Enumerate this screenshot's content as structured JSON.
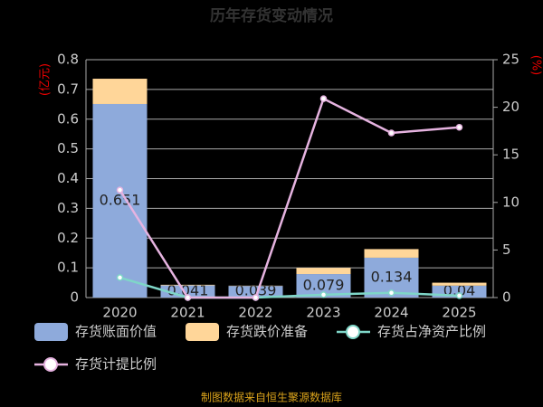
{
  "chart_data": {
    "type": "bar",
    "title": "历年存货变动情况",
    "y_label": "(亿元)",
    "y2_label": "(%)",
    "footer": "制图数据来自恒生聚源数据库",
    "categories": [
      "2020",
      "2021",
      "2022",
      "2023",
      "2024",
      "2025"
    ],
    "ylim": [
      0,
      0.8
    ],
    "yticks": [
      0,
      0.1,
      0.2,
      0.3,
      0.4,
      0.5,
      0.6,
      0.7,
      0.8
    ],
    "y2lim": [
      0,
      25
    ],
    "y2ticks": [
      0,
      5,
      10,
      15,
      20,
      25
    ],
    "grid": true,
    "series": [
      {
        "name": "存货账面价值",
        "type": "bar",
        "color": "#8eaadb",
        "values": [
          0.651,
          0.041,
          0.039,
          0.079,
          0.134,
          0.04
        ]
      },
      {
        "name": "存货跌价准备",
        "type": "bar",
        "color": "#ffd699",
        "values": [
          0.085,
          0.002,
          0.001,
          0.021,
          0.029,
          0.01
        ]
      },
      {
        "name": "存货占净资产比例",
        "type": "line",
        "axis": "y2",
        "color": "#7fd6c8",
        "values": [
          2.1,
          0,
          0,
          0.3,
          0.5,
          0.2
        ]
      },
      {
        "name": "存货计提比例",
        "type": "line",
        "axis": "y2",
        "color": "#e6b3e0",
        "values": [
          11.3,
          0,
          0,
          20.9,
          17.3,
          17.9
        ]
      }
    ]
  }
}
